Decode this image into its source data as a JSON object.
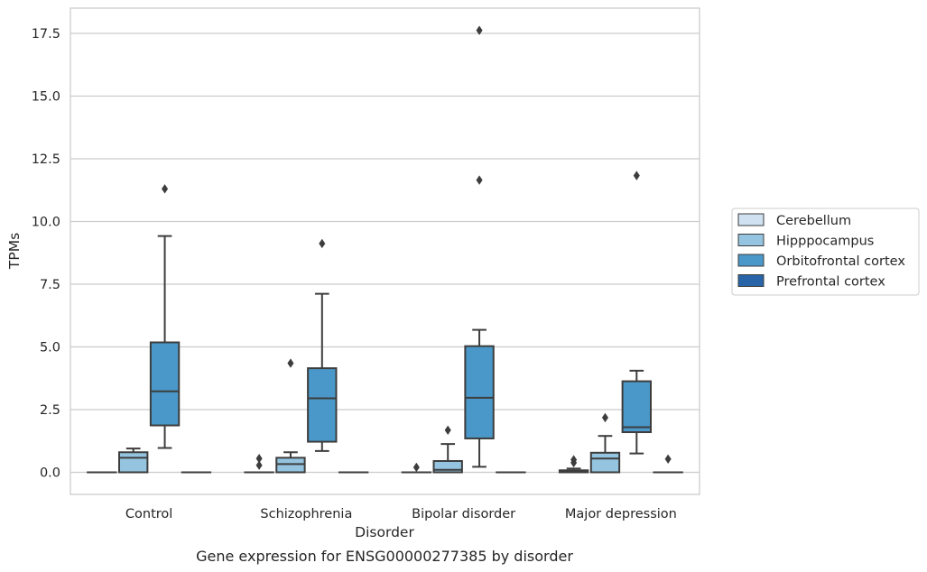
{
  "caption": "Gene expression for ENSG00000277385 by disorder",
  "chart_data": {
    "type": "boxplot",
    "xlabel": "Disorder",
    "ylabel": "TPMs",
    "ylim": [
      -0.85,
      18.5
    ],
    "yticks": [
      0.0,
      2.5,
      5.0,
      7.5,
      10.0,
      12.5,
      15.0,
      17.5
    ],
    "ytick_labels": [
      "0.0",
      "2.5",
      "5.0",
      "7.5",
      "10.0",
      "12.5",
      "15.0",
      "17.5"
    ],
    "grid": "horizontal",
    "legend_position": "right",
    "categories": [
      "Control",
      "Schizophrenia",
      "Bipolar disorder",
      "Major depression"
    ],
    "series": [
      {
        "name": "Cerebellum",
        "color": "#d0e1f2",
        "boxes": [
          {
            "category": "Control",
            "whisker_low": 0.0,
            "q1": 0.0,
            "median": 0.0,
            "q3": 0.0,
            "whisker_high": 0.0,
            "outliers": []
          },
          {
            "category": "Schizophrenia",
            "whisker_low": 0.0,
            "q1": 0.0,
            "median": 0.0,
            "q3": 0.0,
            "whisker_high": 0.0,
            "outliers": [
              0.28,
              0.55
            ]
          },
          {
            "category": "Bipolar disorder",
            "whisker_low": 0.0,
            "q1": 0.0,
            "median": 0.0,
            "q3": 0.0,
            "whisker_high": 0.0,
            "outliers": [
              0.2
            ]
          },
          {
            "category": "Major depression",
            "whisker_low": 0.0,
            "q1": 0.0,
            "median": 0.02,
            "q3": 0.08,
            "whisker_high": 0.15,
            "outliers": [
              0.38,
              0.5
            ]
          }
        ]
      },
      {
        "name": "Hipppocampus",
        "color": "#94c4df",
        "boxes": [
          {
            "category": "Control",
            "whisker_low": 0.0,
            "q1": 0.0,
            "median": 0.58,
            "q3": 0.8,
            "whisker_high": 0.95,
            "outliers": []
          },
          {
            "category": "Schizophrenia",
            "whisker_low": 0.0,
            "q1": 0.0,
            "median": 0.33,
            "q3": 0.58,
            "whisker_high": 0.8,
            "outliers": [
              4.35
            ]
          },
          {
            "category": "Bipolar disorder",
            "whisker_low": 0.0,
            "q1": 0.0,
            "median": 0.1,
            "q3": 0.45,
            "whisker_high": 1.13,
            "outliers": [
              1.68
            ]
          },
          {
            "category": "Major depression",
            "whisker_low": 0.0,
            "q1": 0.0,
            "median": 0.55,
            "q3": 0.78,
            "whisker_high": 1.45,
            "outliers": [
              2.18
            ]
          }
        ]
      },
      {
        "name": "Orbitofrontal cortex",
        "color": "#4a98c9",
        "boxes": [
          {
            "category": "Control",
            "whisker_low": 0.97,
            "q1": 1.87,
            "median": 3.23,
            "q3": 5.18,
            "whisker_high": 9.42,
            "outliers": [
              11.3
            ]
          },
          {
            "category": "Schizophrenia",
            "whisker_low": 0.85,
            "q1": 1.22,
            "median": 2.95,
            "q3": 4.15,
            "whisker_high": 7.12,
            "outliers": [
              9.12
            ]
          },
          {
            "category": "Bipolar disorder",
            "whisker_low": 0.22,
            "q1": 1.35,
            "median": 2.97,
            "q3": 5.03,
            "whisker_high": 5.68,
            "outliers": [
              11.65,
              17.62
            ]
          },
          {
            "category": "Major depression",
            "whisker_low": 0.75,
            "q1": 1.6,
            "median": 1.8,
            "q3": 3.63,
            "whisker_high": 4.05,
            "outliers": [
              11.83
            ]
          }
        ]
      },
      {
        "name": "Prefrontal cortex",
        "color": "#2764a8",
        "boxes": [
          {
            "category": "Control",
            "whisker_low": 0.0,
            "q1": 0.0,
            "median": 0.0,
            "q3": 0.0,
            "whisker_high": 0.0,
            "outliers": []
          },
          {
            "category": "Schizophrenia",
            "whisker_low": 0.0,
            "q1": 0.0,
            "median": 0.0,
            "q3": 0.0,
            "whisker_high": 0.0,
            "outliers": []
          },
          {
            "category": "Bipolar disorder",
            "whisker_low": 0.0,
            "q1": 0.0,
            "median": 0.0,
            "q3": 0.0,
            "whisker_high": 0.0,
            "outliers": []
          },
          {
            "category": "Major depression",
            "whisker_low": 0.0,
            "q1": 0.0,
            "median": 0.0,
            "q3": 0.0,
            "whisker_high": 0.0,
            "outliers": [
              0.53
            ]
          }
        ]
      }
    ]
  }
}
